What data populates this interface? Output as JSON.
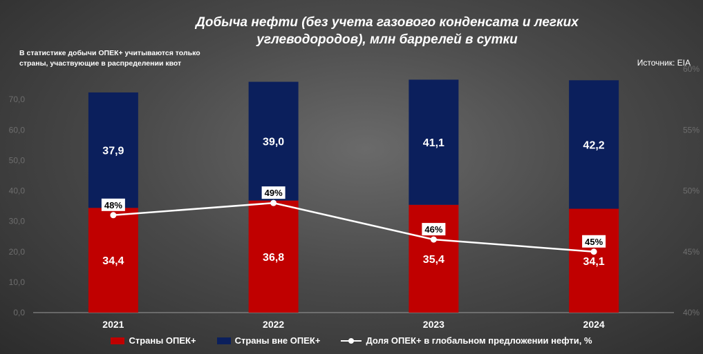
{
  "title_line1": "Добыча нефти (без учета газового конденсата и легких",
  "title_line2": "углеводородов), млн баррелей в сутки",
  "note_line1": "В статистике добычи ОПЕК+ учитываются только",
  "note_line2": "страны, участвующие в распределении квот",
  "source": "Источник: EIA",
  "colors": {
    "opec": "#c00000",
    "non_opec": "#0b1f5c",
    "line": "#ffffff"
  },
  "chart_data": {
    "type": "bar",
    "stacked": true,
    "categories": [
      "2021",
      "2022",
      "2023",
      "2024"
    ],
    "series": [
      {
        "name": "Страны ОПЕК+",
        "values": [
          34.4,
          36.8,
          35.4,
          34.1
        ],
        "labels": [
          "34,4",
          "36,8",
          "35,4",
          "34,1"
        ],
        "color": "#c00000"
      },
      {
        "name": "Страны вне ОПЕК+",
        "values": [
          37.9,
          39.0,
          41.1,
          42.2
        ],
        "labels": [
          "37,9",
          "39,0",
          "41,1",
          "42,2"
        ],
        "color": "#0b1f5c"
      }
    ],
    "line_series": {
      "name": "Доля ОПЕК+ в глобальном предложении нефти, %",
      "values": [
        48,
        49,
        46,
        45
      ],
      "labels": [
        "48%",
        "49%",
        "46%",
        "45%"
      ],
      "axis": "right"
    },
    "ylim": [
      0,
      80
    ],
    "y_ticks": [
      0,
      10,
      20,
      30,
      40,
      50,
      60,
      70
    ],
    "y_tick_labels": [
      "0,0",
      "10,0",
      "20,0",
      "30,0",
      "40,0",
      "50,0",
      "60,0",
      "70,0"
    ],
    "y2lim": [
      40,
      60
    ],
    "y2_ticks": [
      40,
      45,
      50,
      55,
      60
    ],
    "y2_tick_labels": [
      "40%",
      "45%",
      "50%",
      "55%",
      "60%"
    ],
    "legend_position": "bottom"
  }
}
